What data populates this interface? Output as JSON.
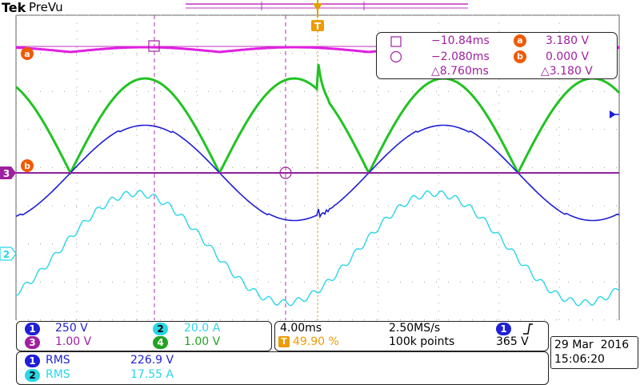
{
  "header": {
    "brand": "Tek",
    "mode": "PreVu"
  },
  "cursor_readout": {
    "cursor1_time": "−10.84ms",
    "cursor2_time": "−2.080ms",
    "delta_time": "△8.760ms",
    "cursor_a_value": "3.180 V",
    "cursor_b_value": "0.000 V",
    "delta_value": "△3.180 V",
    "label_a": "a",
    "label_b": "b"
  },
  "trigger_marker": "T",
  "markers": {
    "ch3": "3",
    "ch2": "2",
    "ref_a": "a",
    "ref_b": "b"
  },
  "channels": [
    {
      "num": "1",
      "scale": "250 V",
      "color": "#1f1fd6"
    },
    {
      "num": "2",
      "scale": "20.0 A",
      "color": "#2ad6e6"
    },
    {
      "num": "3",
      "scale": "1.00 V",
      "color": "#a020a0"
    },
    {
      "num": "4",
      "scale": "1.00 V",
      "color": "#22c322"
    }
  ],
  "timebase": {
    "scale": "4.00ms",
    "sample_rate": "2.50MS/s",
    "trigger_pos": "49.90 %",
    "record_length": "100k points",
    "trigger_ch": "1",
    "trigger_level": "365 V"
  },
  "measurements": [
    {
      "ch": "1",
      "name": "RMS",
      "value": "226.9 V"
    },
    {
      "ch": "2",
      "name": "RMS",
      "value": "17.55 A"
    }
  ],
  "datetime": {
    "date": "29 Mar  2016",
    "time": "15:06:20"
  },
  "colors": {
    "ch1": "#1f1fd6",
    "ch2": "#2ad6e6",
    "ch3": "#a020a0",
    "ch4": "#22c322",
    "math": "#e020e0",
    "trigger": "#f09a00",
    "ref": "#f05a00"
  }
}
